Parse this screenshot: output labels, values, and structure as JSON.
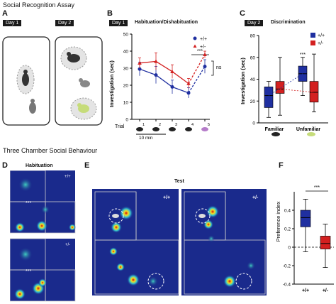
{
  "top": {
    "section_title": "Social Recognition Assay",
    "panel_a": {
      "letter": "A",
      "day1": "Day 1",
      "day2": "Day 2"
    },
    "panel_b": {
      "letter": "B",
      "day_tag": "Day 1",
      "title": "Habituation/Dishabituation",
      "ylabel": "Investigation (sec)",
      "xlabel_trial": "Trial",
      "time_label": "10 min",
      "sig": "***",
      "ns": "ns"
    },
    "panel_c": {
      "letter": "C",
      "day_tag": "Day 2",
      "title": "Discrimination",
      "ylabel": "Investigation (sec)",
      "sig": "***"
    }
  },
  "bottom": {
    "section_title": "Three Chamber Social Behaviour",
    "panel_d": {
      "letter": "D",
      "title": "Habituation",
      "wt": "+/+",
      "het": "+/-",
      "sig1": "***",
      "sig2": "***"
    },
    "panel_e": {
      "letter": "E",
      "title": "Test",
      "wt": "+/+",
      "het": "+/-"
    },
    "panel_f": {
      "letter": "F",
      "ylabel": "Preference index",
      "sig": "***"
    }
  },
  "colors": {
    "wt": "#1f2fa0",
    "het": "#d32020",
    "heatmap_bg": "#1a2a8c"
  },
  "chart_data": [
    {
      "type": "line",
      "ylabel": "Investigation (sec)",
      "xlabel": "Trial",
      "ylim": [
        0,
        50
      ],
      "yticks": [
        0,
        10,
        20,
        30,
        40,
        50
      ],
      "categories": [
        "1",
        "2",
        "3",
        "4",
        "5"
      ],
      "legend": "top-right",
      "series": [
        {
          "name": "+/+",
          "color": "#1f2fa0",
          "marker": "circle",
          "values": [
            29.5,
            26,
            19,
            15.5,
            31
          ],
          "errors": [
            4,
            5,
            4,
            3,
            4
          ]
        },
        {
          "name": "+/-",
          "color": "#d32020",
          "marker": "triangle",
          "values": [
            33,
            34,
            28,
            21,
            38
          ],
          "errors": [
            3,
            5,
            4,
            3,
            2
          ]
        }
      ]
    },
    {
      "type": "box",
      "ylabel": "Investigation (sec)",
      "ylim": [
        0,
        80
      ],
      "yticks": [
        0,
        20,
        40,
        60,
        80
      ],
      "categories": [
        "Familiar",
        "Unfamiliar"
      ],
      "legend": "top-right",
      "series": [
        {
          "name": "+/+",
          "color": "#1f2fa0",
          "boxes": [
            {
              "min": 5,
              "q1": 14,
              "median": 25,
              "q3": 33,
              "max": 38
            },
            {
              "min": 25,
              "q1": 38,
              "median": 45,
              "q3": 52,
              "max": 60
            }
          ]
        },
        {
          "name": "+/-",
          "color": "#d32020",
          "boxes": [
            {
              "min": 7,
              "q1": 27,
              "median": 31,
              "q3": 38,
              "max": 60
            },
            {
              "min": 10,
              "q1": 19,
              "median": 28,
              "q3": 38,
              "max": 63
            }
          ]
        }
      ]
    },
    {
      "type": "box",
      "ylabel": "Preference index",
      "ylim": [
        -0.4,
        0.6
      ],
      "yticks": [
        -0.4,
        -0.2,
        0,
        0.2,
        0.4
      ],
      "categories": [
        "+/+",
        "+/-"
      ],
      "series": [
        {
          "name": "+/+",
          "color": "#1f2fa0",
          "boxes": [
            {
              "min": -0.05,
              "q1": 0.22,
              "median": 0.32,
              "q3": 0.4,
              "max": 0.52
            }
          ]
        },
        {
          "name": "+/-",
          "color": "#d32020",
          "boxes": [
            {
              "min": -0.22,
              "q1": -0.02,
              "median": 0.04,
              "q3": 0.12,
              "max": 0.25
            }
          ]
        }
      ]
    }
  ]
}
